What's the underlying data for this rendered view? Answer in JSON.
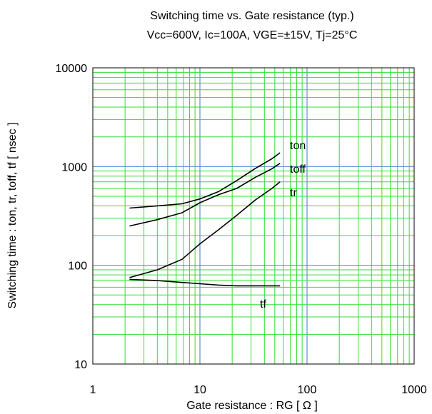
{
  "chart_data": {
    "type": "line",
    "title": "Switching time vs. Gate resistance (typ.)",
    "subtitle": "Vcc=600V, Ic=100A, VGE=±15V, Tj=25°C",
    "xlabel": "Gate resistance : RG [ Ω ]",
    "ylabel": "Switching time : ton, tr, toff, tf [ nsec ]",
    "x_scale": "log",
    "y_scale": "log",
    "xlim": [
      1,
      1000
    ],
    "ylim": [
      10,
      10000
    ],
    "x_ticks": [
      "1",
      "10",
      "100",
      "1000"
    ],
    "y_ticks": [
      "10",
      "100",
      "1000",
      "10000"
    ],
    "grid": true,
    "colors": {
      "minor_grid": "#33dd33",
      "major_grid": "#5b8fd6",
      "curve": "#000000",
      "frame": "#000000"
    },
    "series": [
      {
        "name": "ton",
        "x": [
          2.2,
          4,
          6.8,
          10,
          15,
          22,
          33,
          47,
          56
        ],
        "y": [
          380,
          400,
          420,
          470,
          560,
          720,
          960,
          1200,
          1380
        ]
      },
      {
        "name": "toff",
        "x": [
          2.2,
          4,
          6.8,
          10,
          15,
          22,
          33,
          47,
          56
        ],
        "y": [
          250,
          290,
          340,
          430,
          520,
          600,
          780,
          950,
          1080
        ]
      },
      {
        "name": "tr",
        "x": [
          2.2,
          4,
          6.8,
          10,
          15,
          22,
          33,
          47,
          56
        ],
        "y": [
          75,
          90,
          115,
          165,
          230,
          320,
          460,
          600,
          700
        ]
      },
      {
        "name": "tf",
        "x": [
          2.2,
          4,
          6.8,
          10,
          15,
          22,
          33,
          47,
          56
        ],
        "y": [
          72,
          70,
          67,
          65,
          63,
          62,
          62,
          62,
          62
        ]
      }
    ]
  }
}
